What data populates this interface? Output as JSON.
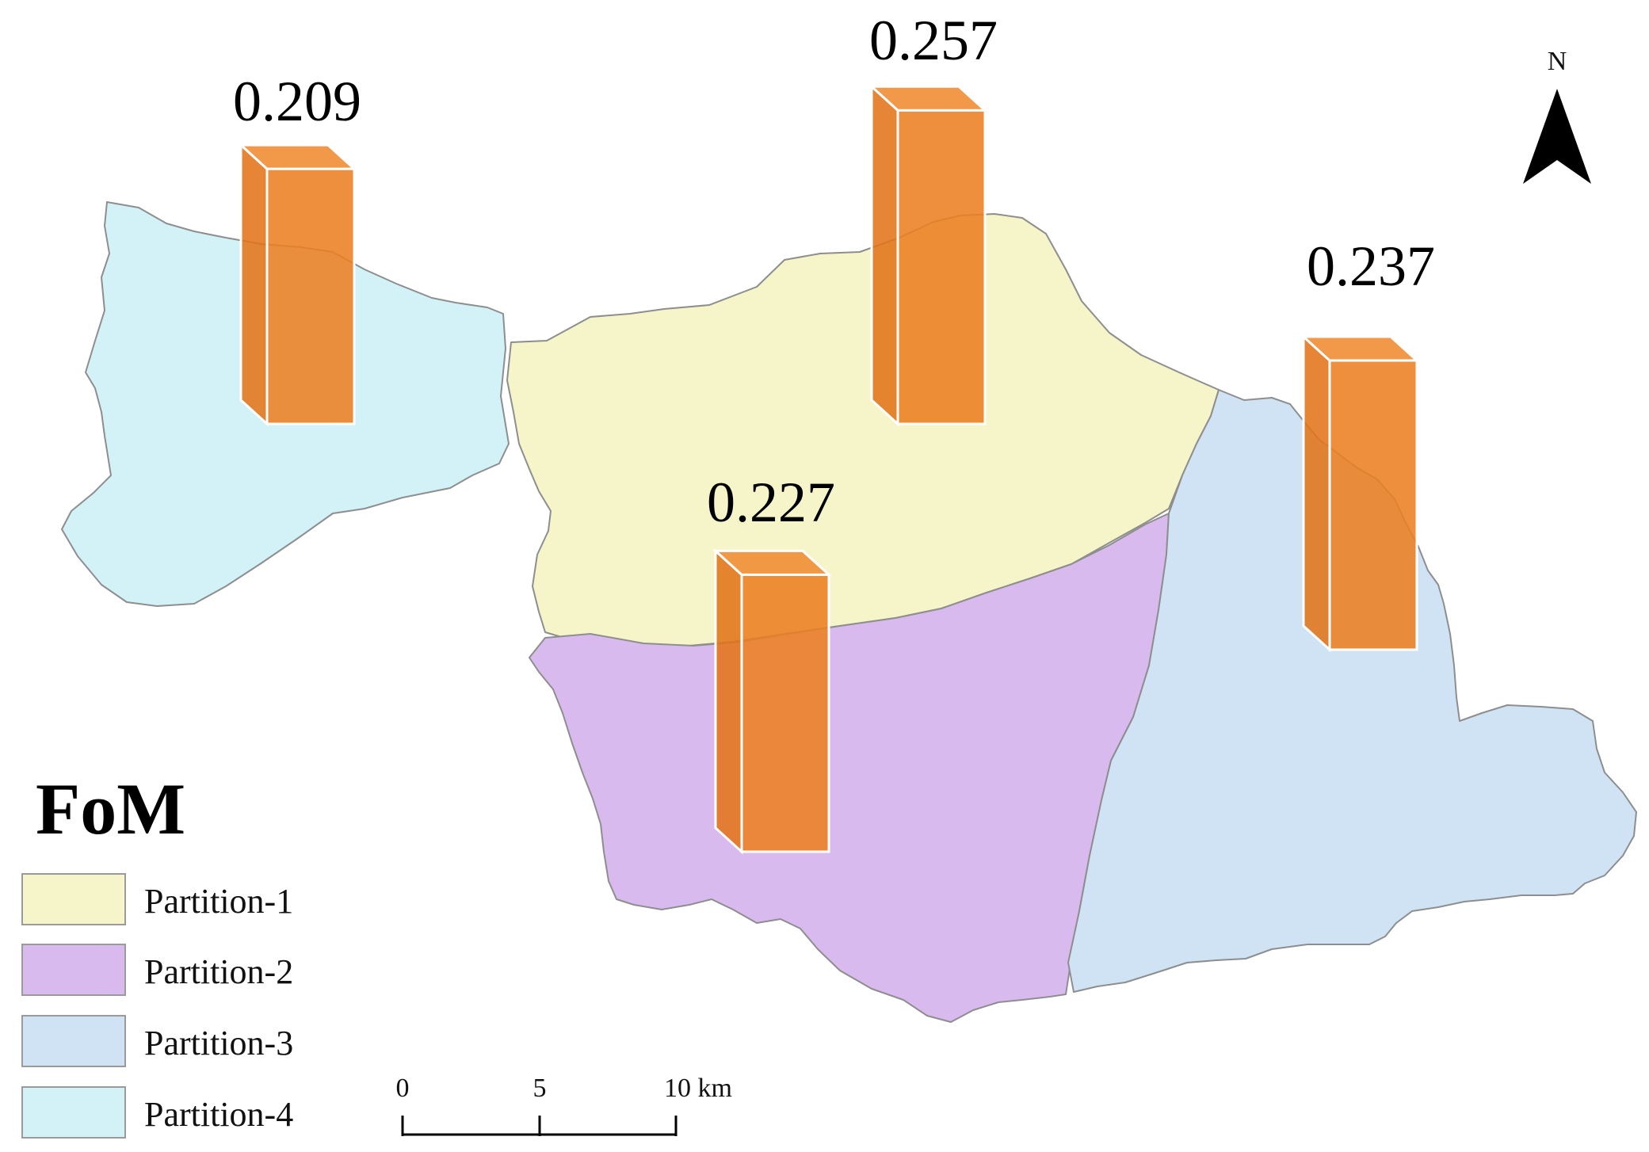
{
  "legend": {
    "title": "FoM",
    "items": [
      {
        "label": "Partition-1",
        "color": "#f5f5c9"
      },
      {
        "label": "Partition-2",
        "color": "#d8baef"
      },
      {
        "label": "Partition-3",
        "color": "#cfe3f4"
      },
      {
        "label": "Partition-4",
        "color": "#d3f2f7"
      }
    ]
  },
  "partitions": [
    {
      "name": "Partition-1",
      "fom": 0.257,
      "label": "0.257"
    },
    {
      "name": "Partition-2",
      "fom": 0.227,
      "label": "0.227"
    },
    {
      "name": "Partition-3",
      "fom": 0.237,
      "label": "0.237"
    },
    {
      "name": "Partition-4",
      "fom": 0.209,
      "label": "0.209"
    }
  ],
  "north_arrow": {
    "label": "N",
    "icon": "north-arrow-icon"
  },
  "scale_bar": {
    "ticks": [
      "0",
      "5",
      "10 km"
    ]
  },
  "colors": {
    "bar": "#ec7f22"
  }
}
